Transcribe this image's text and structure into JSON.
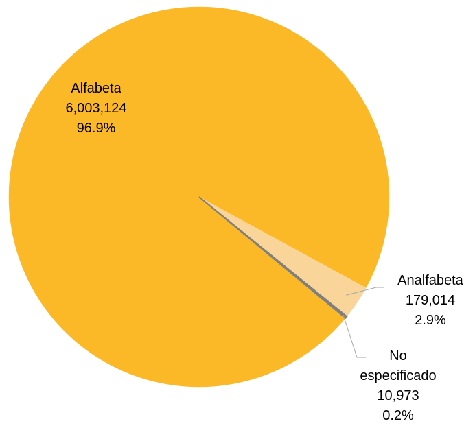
{
  "chart_data": {
    "type": "pie",
    "categories": [
      "Alfabeta",
      "Analfabeta",
      "No especificado"
    ],
    "values": [
      6003124,
      179014,
      10973
    ],
    "value_labels": [
      "6,003,124",
      "179,014",
      "10,973"
    ],
    "percentages": [
      96.9,
      2.9,
      0.2
    ],
    "percentage_labels": [
      "96.9%",
      "2.9%",
      "0.2%"
    ],
    "colors": [
      "#fbb927",
      "#fad59a",
      "#7f7f7f"
    ]
  }
}
